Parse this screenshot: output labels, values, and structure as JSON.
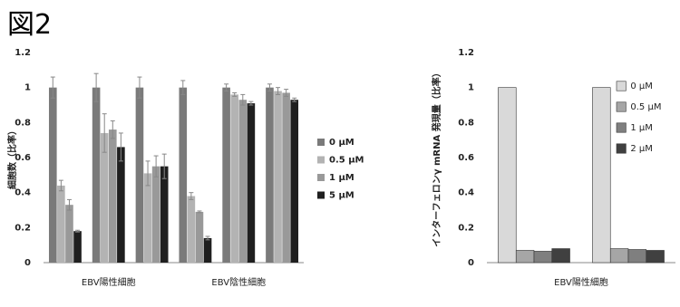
{
  "page_title": "図2",
  "chart_data": [
    {
      "type": "bar",
      "y_label": "細胞数（比率）",
      "categories": [
        null,
        null,
        null,
        null,
        null,
        null
      ],
      "group_labels": [
        "EBV陽性細胞",
        "EBV陰性細胞"
      ],
      "ylim": [
        0,
        1.2
      ],
      "yticks": [
        0,
        0.2,
        0.4,
        0.6,
        0.8,
        1,
        1.2
      ],
      "grid": false,
      "series": [
        {
          "name": "0 μM",
          "color": "#7a7a7a",
          "values": [
            1,
            1,
            1,
            1,
            1,
            1
          ],
          "errors": [
            0.06,
            0.08,
            0.06,
            0.04,
            0.02,
            0.02
          ]
        },
        {
          "name": "0.5 μM",
          "color": "#b3b3b3",
          "values": [
            0.44,
            0.74,
            0.51,
            0.38,
            0.96,
            0.98
          ],
          "errors": [
            0.03,
            0.11,
            0.07,
            0.02,
            0.01,
            0.02
          ]
        },
        {
          "name": "1 μM",
          "color": "#999999",
          "values": [
            0.33,
            0.76,
            0.55,
            0.29,
            0.93,
            0.97
          ],
          "errors": [
            0.03,
            0.05,
            0.06,
            0.005,
            0.03,
            0.02
          ]
        },
        {
          "name": "5 μM",
          "color": "#1f1f1f",
          "values": [
            0.18,
            0.66,
            0.55,
            0.14,
            0.91,
            0.93
          ],
          "errors": [
            0.005,
            0.08,
            0.07,
            0.01,
            0.01,
            0.01
          ]
        }
      ]
    },
    {
      "type": "bar",
      "y_label": "インターフェロンγ mRNA 発現量（比率）",
      "categories": [
        null,
        null
      ],
      "group_labels": [
        "EBV陽性細胞"
      ],
      "ylim": [
        0,
        1.2
      ],
      "yticks": [
        0,
        0.2,
        0.4,
        0.6,
        0.8,
        1,
        1.2
      ],
      "grid": false,
      "series": [
        {
          "name": "0 μM",
          "color": "#d9d9d9",
          "values": [
            1,
            1
          ]
        },
        {
          "name": "0.5 μM",
          "color": "#a6a6a6",
          "values": [
            0.07,
            0.08
          ]
        },
        {
          "name": "1 μM",
          "color": "#7f7f7f",
          "values": [
            0.065,
            0.075
          ]
        },
        {
          "name": "2 μM",
          "color": "#404040",
          "values": [
            0.08,
            0.07
          ]
        }
      ]
    }
  ]
}
